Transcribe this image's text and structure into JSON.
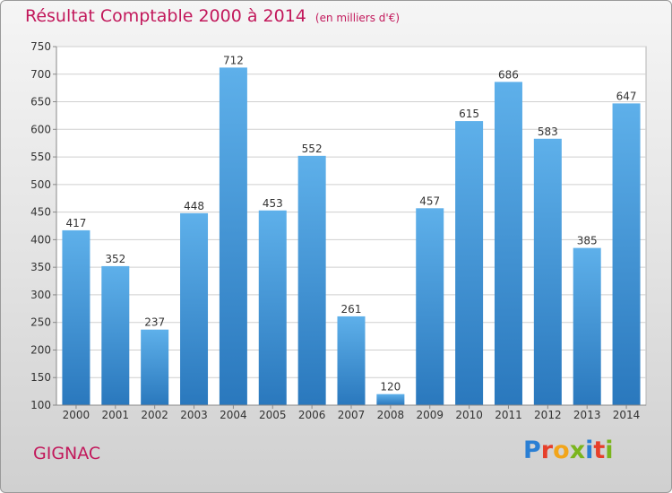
{
  "title": "Résultat Comptable 2000 à 2014",
  "unit": "(en milliers d'€)",
  "place": "GIGNAC",
  "logo": "Proxiti",
  "chart_data": {
    "type": "bar",
    "categories": [
      "2000",
      "2001",
      "2002",
      "2003",
      "2004",
      "2005",
      "2006",
      "2007",
      "2008",
      "2009",
      "2010",
      "2011",
      "2012",
      "2013",
      "2014"
    ],
    "values": [
      417,
      352,
      237,
      448,
      712,
      453,
      552,
      261,
      120,
      457,
      615,
      686,
      583,
      385,
      647
    ],
    "ylim": [
      100,
      750
    ],
    "yticks": [
      100,
      150,
      200,
      250,
      300,
      350,
      400,
      450,
      500,
      550,
      600,
      650,
      700,
      750
    ],
    "grid": true,
    "colors": {
      "bar_top": "#5eb0ea",
      "bar_bottom": "#2a78bd",
      "title": "#c2185b"
    }
  }
}
